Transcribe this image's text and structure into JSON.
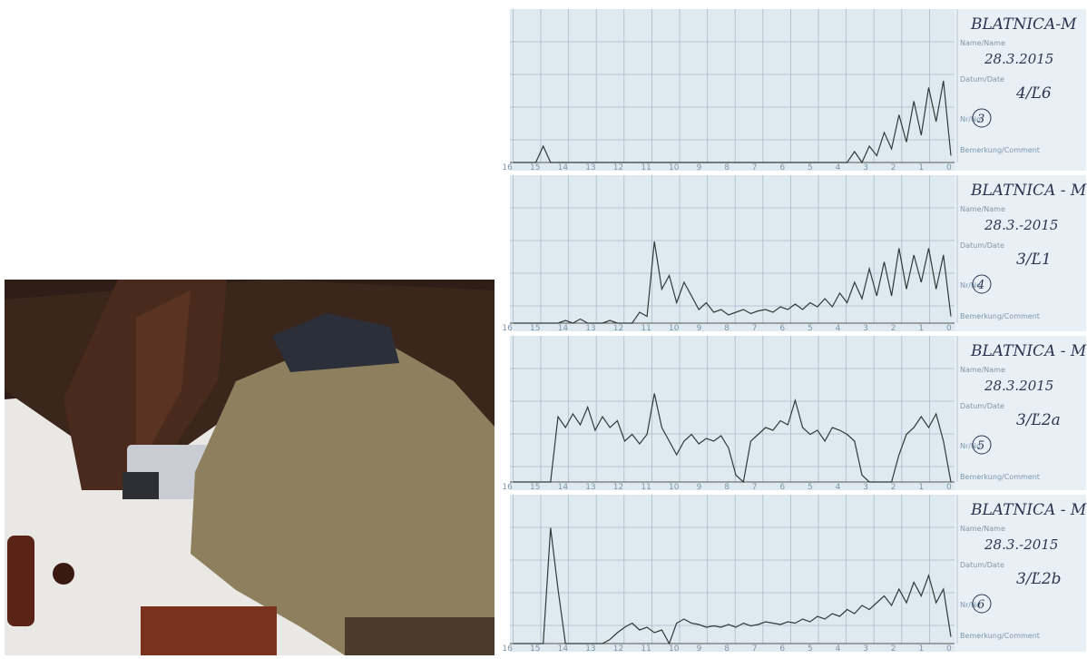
{
  "labels": {
    "name": "Name/Name",
    "date": "Datum/Date",
    "nr": "Nr/No",
    "comment": "Bemerkung/Comment"
  },
  "scale": [
    "16",
    "15",
    "14",
    "13",
    "12",
    "11",
    "10",
    "9",
    "8",
    "7",
    "6",
    "5",
    "4",
    "3",
    "2",
    "1",
    "0"
  ],
  "strips": [
    {
      "name": "BLATNICA-M",
      "date": "28.3.2015",
      "number": "4/Ľ6",
      "circle": "3",
      "trace": [
        0,
        0,
        0,
        0,
        12,
        0,
        0,
        0,
        0,
        0,
        0,
        0,
        0,
        0,
        0,
        0,
        0,
        0,
        0,
        0,
        0,
        0,
        0,
        0,
        0,
        0,
        0,
        0,
        0,
        0,
        0,
        0,
        0,
        0,
        0,
        0,
        0,
        0,
        0,
        0,
        0,
        0,
        0,
        0,
        0,
        0,
        8,
        0,
        12,
        5,
        22,
        10,
        35,
        15,
        45,
        20,
        55,
        30,
        60,
        5
      ]
    },
    {
      "name": "BLATNICA - M",
      "date": "28.3.-2015",
      "number": "3/Ľ1",
      "circle": "4",
      "trace": [
        0,
        0,
        0,
        0,
        0,
        0,
        0,
        2,
        0,
        3,
        0,
        0,
        0,
        2,
        0,
        0,
        0,
        8,
        5,
        60,
        25,
        35,
        15,
        30,
        20,
        10,
        15,
        8,
        10,
        6,
        8,
        10,
        7,
        9,
        10,
        8,
        12,
        10,
        14,
        10,
        15,
        12,
        18,
        12,
        22,
        15,
        30,
        18,
        40,
        20,
        45,
        20,
        55,
        25,
        50,
        30,
        55,
        25,
        50,
        5
      ]
    },
    {
      "name": "BLATNICA - M",
      "date": "28.3.2015",
      "number": "3/Ľ2a",
      "circle": "5",
      "trace": [
        0,
        0,
        0,
        0,
        0,
        0,
        48,
        40,
        50,
        42,
        55,
        38,
        48,
        40,
        45,
        30,
        35,
        28,
        35,
        65,
        40,
        30,
        20,
        30,
        35,
        28,
        32,
        30,
        34,
        25,
        5,
        0,
        30,
        35,
        40,
        38,
        45,
        42,
        60,
        40,
        35,
        38,
        30,
        40,
        38,
        35,
        30,
        5,
        0,
        0,
        0,
        0,
        20,
        35,
        40,
        48,
        40,
        50,
        30,
        0
      ]
    },
    {
      "name": "BLATNICA - M",
      "date": "28.3.-2015",
      "number": "3/Ľ2b",
      "circle": "6",
      "trace": [
        0,
        0,
        0,
        0,
        0,
        85,
        40,
        0,
        0,
        0,
        0,
        0,
        0,
        3,
        8,
        12,
        15,
        10,
        12,
        8,
        10,
        0,
        15,
        18,
        15,
        14,
        12,
        13,
        12,
        14,
        12,
        15,
        13,
        14,
        16,
        15,
        14,
        16,
        15,
        18,
        16,
        20,
        18,
        22,
        20,
        25,
        22,
        28,
        25,
        30,
        35,
        28,
        40,
        30,
        45,
        35,
        50,
        30,
        40,
        5
      ]
    }
  ]
}
